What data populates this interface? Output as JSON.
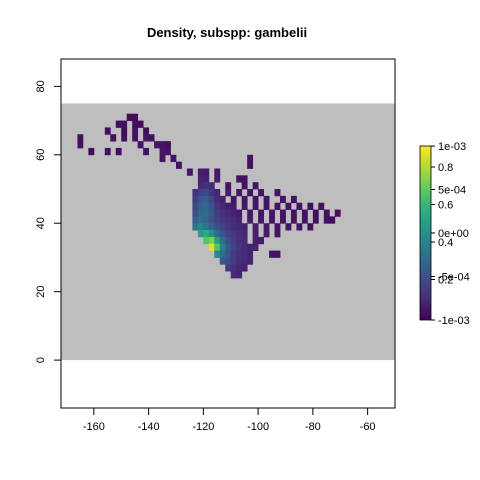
{
  "chart_data": {
    "type": "heatmap",
    "title": "Density, subspp: gambelii",
    "xlabel": "",
    "ylabel": "",
    "xlim": [
      -172,
      -50
    ],
    "ylim": [
      -14,
      88
    ],
    "xticks": [
      -160,
      -140,
      -120,
      -100,
      -80,
      -60
    ],
    "yticks": [
      0,
      20,
      40,
      60,
      80
    ],
    "raster_extent": {
      "x": [
        -172,
        -50
      ],
      "y": [
        0,
        75
      ]
    },
    "na_color": "#bebebe",
    "cell_size_deg": 2,
    "legend": {
      "position": "right",
      "colormap": "viridis",
      "range": [
        -0.001,
        0.001
      ],
      "labels": [
        "1e-03",
        "5e-04",
        "0e+00",
        "-5e-04",
        "-1e-03"
      ],
      "overlay_labels": [
        "0.8",
        "0.6",
        "0.4",
        "0.2"
      ]
    },
    "colors": {
      "background_na": "#bebebe",
      "low": "#440154",
      "high": "#fde725"
    },
    "cells": [
      [
        -147,
        71,
        0.03
      ],
      [
        -145,
        71,
        0.03
      ],
      [
        -151,
        69,
        0.04
      ],
      [
        -149,
        69,
        0.04
      ],
      [
        -145,
        69,
        0.03
      ],
      [
        -143,
        69,
        0.03
      ],
      [
        -155,
        67,
        0.03
      ],
      [
        -149,
        67,
        0.03
      ],
      [
        -145,
        67,
        0.05
      ],
      [
        -141,
        67,
        0.04
      ],
      [
        -165,
        65,
        0.04
      ],
      [
        -153,
        65,
        0.04
      ],
      [
        -149,
        65,
        0.04
      ],
      [
        -145,
        65,
        0.05
      ],
      [
        -141,
        65,
        0.05
      ],
      [
        -139,
        65,
        0.04
      ],
      [
        -165,
        63,
        0.04
      ],
      [
        -143,
        63,
        0.05
      ],
      [
        -137,
        63,
        0.06
      ],
      [
        -135,
        63,
        0.05
      ],
      [
        -133,
        63,
        0.04
      ],
      [
        -161,
        61,
        0.03
      ],
      [
        -155,
        61,
        0.04
      ],
      [
        -151,
        61,
        0.03
      ],
      [
        -141,
        61,
        0.05
      ],
      [
        -135,
        61,
        0.06
      ],
      [
        -133,
        61,
        0.05
      ],
      [
        -135,
        59,
        0.06
      ],
      [
        -131,
        59,
        0.05
      ],
      [
        -103,
        59,
        0.05
      ],
      [
        -129,
        57,
        0.05
      ],
      [
        -103,
        57,
        0.05
      ],
      [
        -125,
        55,
        0.06
      ],
      [
        -121,
        55,
        0.08
      ],
      [
        -119,
        55,
        0.07
      ],
      [
        -115,
        55,
        0.06
      ],
      [
        -121,
        53,
        0.1
      ],
      [
        -119,
        53,
        0.09
      ],
      [
        -115,
        53,
        0.07
      ],
      [
        -107,
        53,
        0.05
      ],
      [
        -105,
        53,
        0.05
      ],
      [
        -121,
        51,
        0.12
      ],
      [
        -119,
        51,
        0.14
      ],
      [
        -117,
        51,
        0.11
      ],
      [
        -111,
        51,
        0.06
      ],
      [
        -105,
        51,
        0.05
      ],
      [
        -101,
        51,
        0.05
      ],
      [
        -123,
        49,
        0.14
      ],
      [
        -121,
        49,
        0.2
      ],
      [
        -119,
        49,
        0.22
      ],
      [
        -117,
        49,
        0.15
      ],
      [
        -115,
        49,
        0.1
      ],
      [
        -111,
        49,
        0.08
      ],
      [
        -107,
        49,
        0.06
      ],
      [
        -103,
        49,
        0.05
      ],
      [
        -99,
        49,
        0.05
      ],
      [
        -93,
        49,
        0.05
      ],
      [
        -123,
        47,
        0.18
      ],
      [
        -121,
        47,
        0.26
      ],
      [
        -119,
        47,
        0.3
      ],
      [
        -117,
        47,
        0.22
      ],
      [
        -115,
        47,
        0.12
      ],
      [
        -113,
        47,
        0.09
      ],
      [
        -109,
        47,
        0.06
      ],
      [
        -105,
        47,
        0.05
      ],
      [
        -101,
        47,
        0.05
      ],
      [
        -97,
        47,
        0.05
      ],
      [
        -91,
        47,
        0.05
      ],
      [
        -87,
        47,
        0.05
      ],
      [
        -123,
        45,
        0.22
      ],
      [
        -121,
        45,
        0.3
      ],
      [
        -119,
        45,
        0.34
      ],
      [
        -117,
        45,
        0.26
      ],
      [
        -115,
        45,
        0.16
      ],
      [
        -113,
        45,
        0.11
      ],
      [
        -111,
        45,
        0.08
      ],
      [
        -109,
        45,
        0.07
      ],
      [
        -105,
        45,
        0.06
      ],
      [
        -101,
        45,
        0.06
      ],
      [
        -97,
        45,
        0.05
      ],
      [
        -93,
        45,
        0.05
      ],
      [
        -89,
        45,
        0.05
      ],
      [
        -85,
        45,
        0.05
      ],
      [
        -81,
        45,
        0.04
      ],
      [
        -77,
        45,
        0.04
      ],
      [
        -123,
        43,
        0.24
      ],
      [
        -121,
        43,
        0.32
      ],
      [
        -119,
        43,
        0.35
      ],
      [
        -117,
        43,
        0.28
      ],
      [
        -115,
        43,
        0.18
      ],
      [
        -113,
        43,
        0.14
      ],
      [
        -111,
        43,
        0.12
      ],
      [
        -109,
        43,
        0.1
      ],
      [
        -107,
        43,
        0.08
      ],
      [
        -103,
        43,
        0.07
      ],
      [
        -99,
        43,
        0.06
      ],
      [
        -95,
        43,
        0.05
      ],
      [
        -91,
        43,
        0.05
      ],
      [
        -87,
        43,
        0.05
      ],
      [
        -83,
        43,
        0.05
      ],
      [
        -79,
        43,
        0.04
      ],
      [
        -75,
        43,
        0.04
      ],
      [
        -71,
        43,
        0.03
      ],
      [
        -123,
        41,
        0.3
      ],
      [
        -121,
        41,
        0.36
      ],
      [
        -119,
        41,
        0.32
      ],
      [
        -117,
        41,
        0.26
      ],
      [
        -115,
        41,
        0.2
      ],
      [
        -113,
        41,
        0.16
      ],
      [
        -111,
        41,
        0.14
      ],
      [
        -109,
        41,
        0.12
      ],
      [
        -107,
        41,
        0.1
      ],
      [
        -103,
        41,
        0.08
      ],
      [
        -99,
        41,
        0.07
      ],
      [
        -95,
        41,
        0.06
      ],
      [
        -91,
        41,
        0.05
      ],
      [
        -87,
        41,
        0.05
      ],
      [
        -83,
        41,
        0.05
      ],
      [
        -79,
        41,
        0.04
      ],
      [
        -75,
        41,
        0.04
      ],
      [
        -73,
        41,
        0.03
      ],
      [
        -123,
        39,
        0.38
      ],
      [
        -121,
        39,
        0.46
      ],
      [
        -119,
        39,
        0.4
      ],
      [
        -117,
        39,
        0.3
      ],
      [
        -115,
        39,
        0.24
      ],
      [
        -113,
        39,
        0.2
      ],
      [
        -111,
        39,
        0.16
      ],
      [
        -109,
        39,
        0.13
      ],
      [
        -107,
        39,
        0.11
      ],
      [
        -105,
        39,
        0.1
      ],
      [
        -101,
        39,
        0.08
      ],
      [
        -97,
        39,
        0.07
      ],
      [
        -93,
        39,
        0.06
      ],
      [
        -89,
        39,
        0.05
      ],
      [
        -85,
        39,
        0.05
      ],
      [
        -81,
        39,
        0.04
      ],
      [
        -121,
        37,
        0.55
      ],
      [
        -119,
        37,
        0.62
      ],
      [
        -117,
        37,
        0.5
      ],
      [
        -115,
        37,
        0.34
      ],
      [
        -113,
        37,
        0.26
      ],
      [
        -111,
        37,
        0.2
      ],
      [
        -109,
        37,
        0.16
      ],
      [
        -107,
        37,
        0.13
      ],
      [
        -105,
        37,
        0.11
      ],
      [
        -101,
        37,
        0.09
      ],
      [
        -97,
        37,
        0.07
      ],
      [
        -93,
        37,
        0.06
      ],
      [
        -119,
        35,
        0.72
      ],
      [
        -117,
        35,
        0.8
      ],
      [
        -115,
        35,
        0.56
      ],
      [
        -113,
        35,
        0.36
      ],
      [
        -111,
        35,
        0.24
      ],
      [
        -109,
        35,
        0.18
      ],
      [
        -107,
        35,
        0.14
      ],
      [
        -105,
        35,
        0.12
      ],
      [
        -101,
        35,
        0.09
      ],
      [
        -99,
        35,
        0.08
      ],
      [
        -117,
        33,
        0.95
      ],
      [
        -115,
        33,
        0.72
      ],
      [
        -113,
        33,
        0.44
      ],
      [
        -111,
        33,
        0.28
      ],
      [
        -109,
        33,
        0.2
      ],
      [
        -107,
        33,
        0.15
      ],
      [
        -105,
        33,
        0.12
      ],
      [
        -103,
        33,
        0.1
      ],
      [
        -101,
        33,
        0.09
      ],
      [
        -115,
        31,
        0.48
      ],
      [
        -113,
        31,
        0.36
      ],
      [
        -111,
        31,
        0.26
      ],
      [
        -109,
        31,
        0.18
      ],
      [
        -107,
        31,
        0.14
      ],
      [
        -105,
        31,
        0.12
      ],
      [
        -103,
        31,
        0.1
      ],
      [
        -95,
        31,
        0.05
      ],
      [
        -93,
        31,
        0.05
      ],
      [
        -113,
        29,
        0.28
      ],
      [
        -111,
        29,
        0.24
      ],
      [
        -109,
        29,
        0.18
      ],
      [
        -107,
        29,
        0.13
      ],
      [
        -105,
        29,
        0.11
      ],
      [
        -103,
        29,
        0.09
      ],
      [
        -111,
        27,
        0.18
      ],
      [
        -109,
        27,
        0.14
      ],
      [
        -107,
        27,
        0.11
      ],
      [
        -105,
        27,
        0.09
      ],
      [
        -109,
        25,
        0.12
      ],
      [
        -107,
        25,
        0.1
      ]
    ]
  }
}
